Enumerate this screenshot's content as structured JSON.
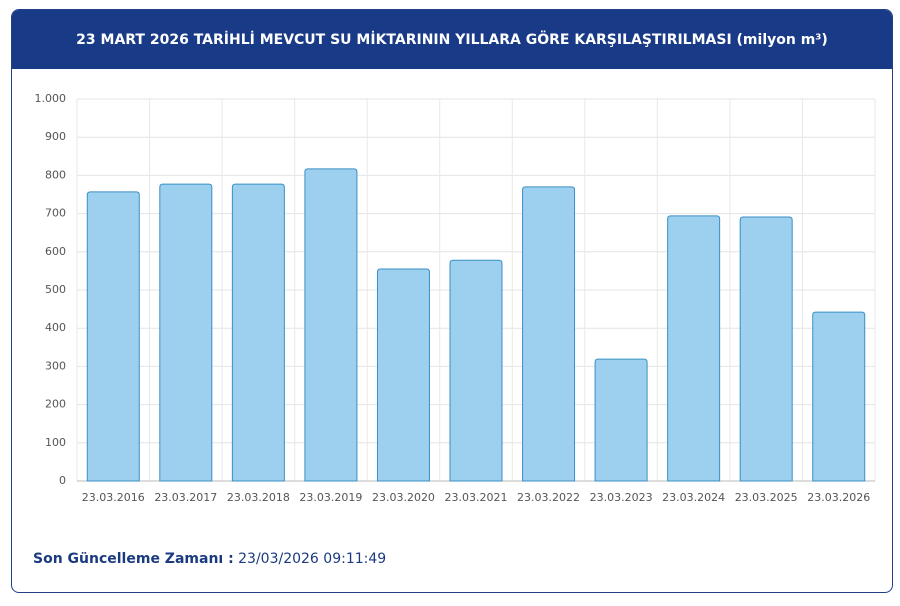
{
  "chart_data": {
    "type": "bar",
    "title": "23 MART 2026 TARİHLİ MEVCUT SU MİKTARININ YILLARA GÖRE KARŞILAŞTIRILMASI (milyon m³)",
    "categories": [
      "23.03.2016",
      "23.03.2017",
      "23.03.2018",
      "23.03.2019",
      "23.03.2020",
      "23.03.2021",
      "23.03.2022",
      "23.03.2023",
      "23.03.2024",
      "23.03.2025",
      "23.03.2026"
    ],
    "values": [
      757,
      777,
      777,
      817,
      555,
      578,
      770,
      319,
      694,
      691,
      442
    ],
    "color": "#9dd0ee",
    "ylim": [
      0,
      1000
    ],
    "yticks": [
      0,
      100,
      200,
      300,
      400,
      500,
      600,
      700,
      800,
      900,
      {
        "value": 1000,
        "label": "1.000"
      }
    ],
    "grid": true
  },
  "update": {
    "label": "Son Güncelleme Zamanı :",
    "value": "23/03/2026 09:11:49"
  }
}
